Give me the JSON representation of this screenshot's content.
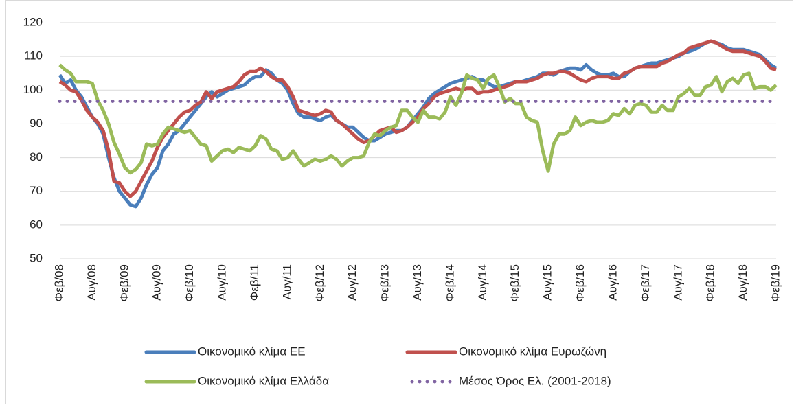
{
  "chart_data": {
    "type": "line",
    "grid": true,
    "legend": "bottom",
    "ylim": [
      50,
      120
    ],
    "yticks": [
      50,
      60,
      70,
      80,
      90,
      100,
      110,
      120
    ],
    "categories": [
      "Φεβ/08",
      null,
      null,
      null,
      null,
      null,
      "Αυγ/08",
      null,
      null,
      null,
      null,
      null,
      "Φεβ/09",
      null,
      null,
      null,
      null,
      null,
      "Αυγ/09",
      null,
      null,
      null,
      null,
      null,
      "Φεβ/10",
      null,
      null,
      null,
      null,
      null,
      "Αυγ/10",
      null,
      null,
      null,
      null,
      null,
      "Φεβ/11",
      null,
      null,
      null,
      null,
      null,
      "Αυγ/11",
      null,
      null,
      null,
      null,
      null,
      "Φεβ/12",
      null,
      null,
      null,
      null,
      null,
      "Αυγ/12",
      null,
      null,
      null,
      null,
      null,
      "Φεβ/13",
      null,
      null,
      null,
      null,
      null,
      "Αυγ/13",
      null,
      null,
      null,
      null,
      null,
      "Φεβ/14",
      null,
      null,
      null,
      null,
      null,
      "Αυγ/14",
      null,
      null,
      null,
      null,
      null,
      "Φεβ/15",
      null,
      null,
      null,
      null,
      null,
      "Αυγ/15",
      null,
      null,
      null,
      null,
      null,
      "Φεβ/16",
      null,
      null,
      null,
      null,
      null,
      "Αυγ/16",
      null,
      null,
      null,
      null,
      null,
      "Φεβ/17",
      null,
      null,
      null,
      null,
      null,
      "Αυγ/17",
      null,
      null,
      null,
      null,
      null,
      "Φεβ/18",
      null,
      null,
      null,
      null,
      null,
      "Αυγ/18",
      null,
      null,
      null,
      null,
      null,
      "Φεβ/19"
    ],
    "series": [
      {
        "name": "Οικονομικό κλίμα ΕΕ",
        "color": "#4a7ebb",
        "values": [
          104.5,
          102,
          103,
          100,
          98,
          95,
          92,
          90,
          87,
          80,
          74,
          70,
          68,
          66,
          65.5,
          68,
          72,
          75,
          77,
          82,
          84,
          87,
          88,
          90,
          92,
          94,
          96,
          98,
          99.5,
          98,
          99,
          100,
          100.5,
          101,
          101.5,
          103,
          104,
          104,
          106,
          105,
          103,
          102,
          100,
          96,
          93,
          92,
          92,
          91.5,
          91,
          92,
          92.5,
          91,
          90,
          89,
          89,
          87.5,
          86,
          85,
          85,
          86,
          87,
          87.5,
          88,
          88,
          89,
          91,
          93,
          95,
          97.5,
          99,
          100,
          101,
          102,
          102.5,
          103,
          103.5,
          104,
          103,
          103,
          102,
          101,
          101,
          101.5,
          102,
          102.5,
          102.5,
          103,
          103.5,
          104,
          105,
          105,
          104.5,
          105.5,
          106,
          106.5,
          106.5,
          106,
          107.5,
          106,
          105,
          104.5,
          104.5,
          105,
          104,
          104,
          105.5,
          106.5,
          107,
          107.5,
          108,
          108,
          108.5,
          109,
          109.5,
          110,
          111,
          111.5,
          112,
          113,
          114,
          114.5,
          114,
          113.5,
          112.5,
          112,
          112,
          112,
          111.5,
          111,
          110.5,
          109,
          107.5,
          106.5
        ]
      },
      {
        "name": "Οικονομικό κλίμα Ευρωζώνη",
        "color": "#c0504d",
        "values": [
          102.5,
          101.5,
          100,
          99.5,
          97,
          94,
          92,
          90.5,
          88,
          82,
          73,
          72.5,
          70,
          68.5,
          70,
          73,
          76,
          79,
          83,
          86,
          88,
          90,
          92,
          93.5,
          94,
          95.5,
          96.5,
          99.5,
          97.5,
          99.5,
          100,
          100.5,
          101,
          102.5,
          104.5,
          105.5,
          105.5,
          106.5,
          105.5,
          104,
          103,
          103,
          101,
          98,
          94,
          93.5,
          93,
          92.5,
          93,
          94,
          93.5,
          91,
          90,
          88.5,
          87,
          85.5,
          84.5,
          85,
          86.5,
          88,
          88.5,
          89,
          87.5,
          88,
          89,
          90.5,
          92,
          94.5,
          96,
          98,
          99,
          99.5,
          100,
          100.5,
          100,
          100.5,
          100.5,
          99,
          99.5,
          99.5,
          100,
          100.5,
          101,
          101.5,
          102.5,
          102.5,
          102.5,
          103,
          103.5,
          104.5,
          105,
          105,
          105.5,
          105.5,
          105,
          104,
          103,
          102.5,
          103.5,
          104,
          104,
          104,
          103.5,
          103.5,
          105,
          105.5,
          106.5,
          107,
          107,
          107,
          107,
          108,
          108.5,
          109.5,
          110.5,
          111,
          112.5,
          113,
          113.5,
          114,
          114.5,
          114,
          113,
          112,
          111.5,
          111.5,
          111.5,
          111,
          110.5,
          110,
          108.5,
          106.5,
          106
        ]
      },
      {
        "name": "Οικονομικό κλίμα Ελλάδα",
        "color": "#9bbb59",
        "values": [
          107.5,
          106,
          105,
          102.5,
          102.5,
          102.5,
          102,
          97,
          94,
          90,
          84.5,
          81,
          77,
          75.5,
          76.5,
          78.5,
          84,
          83.5,
          84,
          87,
          89,
          88.5,
          88,
          87.5,
          88,
          86,
          84,
          83.5,
          79,
          80.5,
          82,
          82.5,
          81.5,
          83,
          82.5,
          82,
          83.5,
          86.5,
          85.5,
          82.5,
          82,
          79.5,
          80,
          82,
          79.5,
          77.5,
          78.5,
          79.5,
          79,
          79.5,
          80.5,
          79.5,
          77.5,
          79,
          80,
          80,
          80.5,
          84.5,
          87,
          86.5,
          88,
          89,
          89.5,
          94,
          94,
          92,
          90.5,
          94,
          92,
          92,
          91.5,
          93.5,
          98,
          95.5,
          99,
          104.5,
          103.5,
          103,
          100.5,
          103.5,
          104.5,
          101,
          96.5,
          97.5,
          96,
          96,
          92,
          91,
          90.5,
          82,
          76,
          84,
          87,
          87,
          88,
          92,
          89.5,
          90.5,
          91,
          90.5,
          90.5,
          91,
          93,
          92.5,
          94.5,
          93,
          95.5,
          96,
          95.5,
          93.5,
          93.5,
          95.5,
          94,
          94,
          98,
          99,
          100.5,
          98.5,
          98.5,
          101,
          101.5,
          104,
          99.5,
          102.5,
          103.5,
          102,
          104.5,
          105,
          100.5,
          101,
          101,
          100,
          101.5
        ]
      },
      {
        "name": "Μέσος Όρος Ελ. (2001-2018)",
        "color": "#8064a2",
        "value": 96.7,
        "style": "dotted"
      }
    ]
  }
}
